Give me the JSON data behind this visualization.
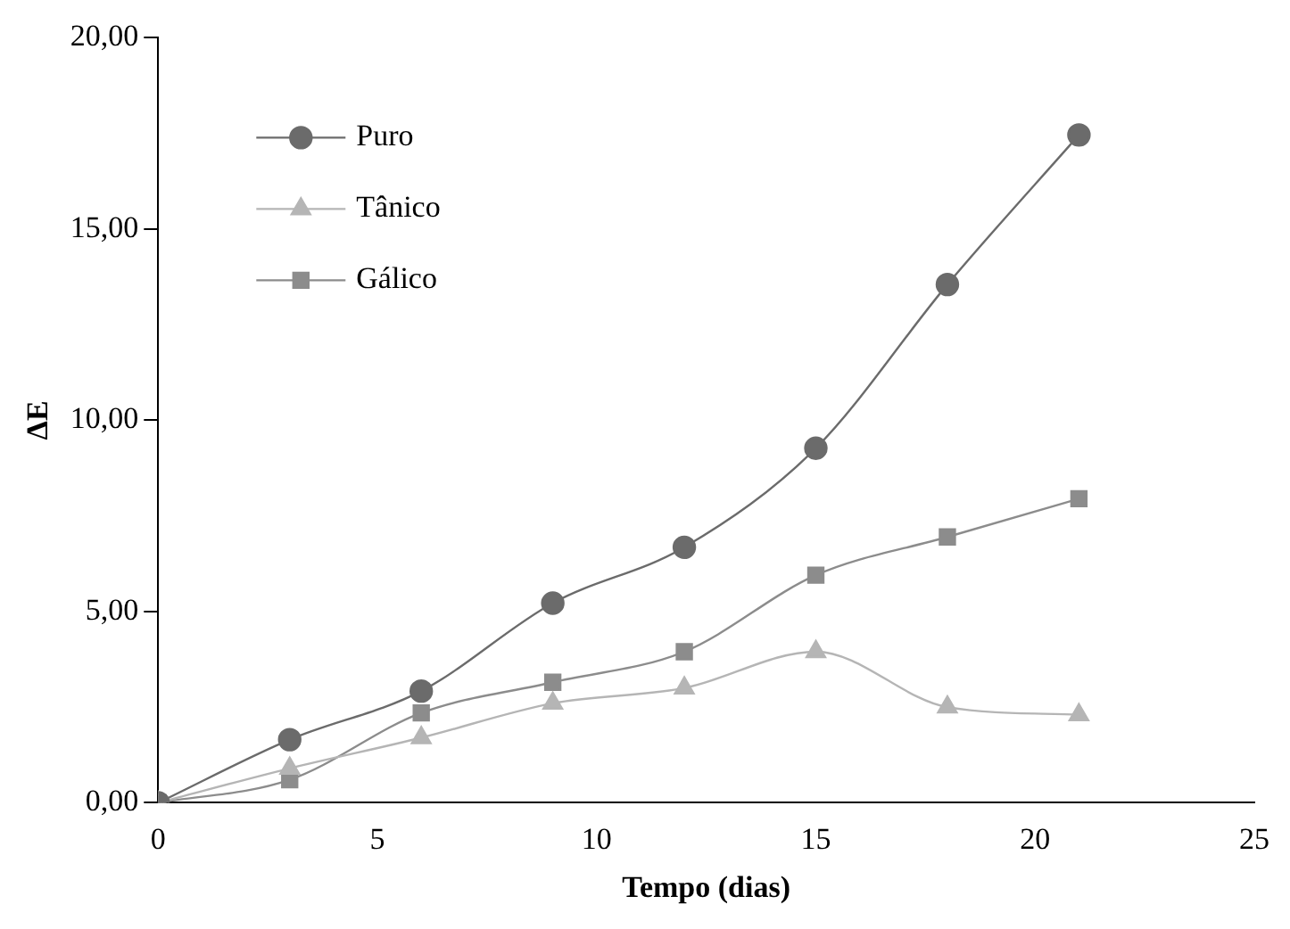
{
  "chart_data": {
    "type": "line",
    "xlabel": "Tempo (dias)",
    "ylabel": "ΔE",
    "x": [
      0,
      3,
      6,
      9,
      12,
      15,
      18,
      21
    ],
    "series": [
      {
        "name": "Puro",
        "color": "#6b6b6b",
        "marker": "circle",
        "values": [
          0,
          1.65,
          2.92,
          5.22,
          6.68,
          9.27,
          13.55,
          17.46
        ]
      },
      {
        "name": "Tânico",
        "color": "#b5b5b5",
        "marker": "triangle",
        "values": [
          0,
          0.9,
          1.7,
          2.6,
          3.0,
          3.95,
          2.5,
          2.3
        ]
      },
      {
        "name": "Gálico",
        "color": "#8c8c8c",
        "marker": "square",
        "values": [
          0,
          0.6,
          2.35,
          3.15,
          3.95,
          5.95,
          6.95,
          7.95
        ]
      }
    ],
    "xlim": [
      0,
      25
    ],
    "xticks": [
      0,
      5,
      10,
      15,
      20,
      25
    ],
    "ylim": [
      0,
      20
    ],
    "yticks": [
      {
        "value": 0,
        "label": "0,00"
      },
      {
        "value": 5,
        "label": "5,00"
      },
      {
        "value": 10,
        "label": "10,00"
      },
      {
        "value": 15,
        "label": "15,00"
      },
      {
        "value": 20,
        "label": "20,00"
      }
    ],
    "grid": false,
    "legend": "top left",
    "line_style": "solid"
  }
}
